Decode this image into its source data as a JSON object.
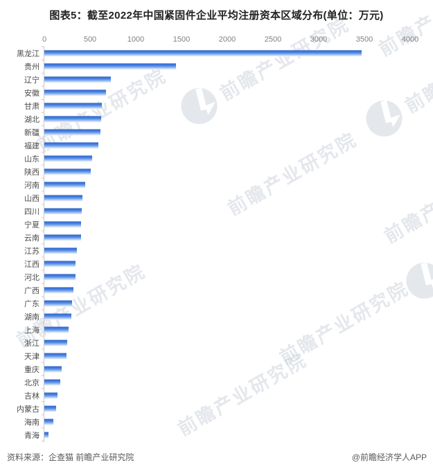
{
  "chart_data": {
    "type": "bar",
    "orientation": "horizontal",
    "title": "图表5：截至2022年中国紧固件企业平均注册资本区域分布(单位：万元)",
    "unit": "万元",
    "categories": [
      "黑龙江",
      "贵州",
      "辽宁",
      "安徽",
      "甘肃",
      "湖北",
      "新疆",
      "福建",
      "山东",
      "陕西",
      "河南",
      "山西",
      "四川",
      "宁夏",
      "云南",
      "江苏",
      "江西",
      "河北",
      "广西",
      "广东",
      "湖南",
      "上海",
      "浙江",
      "天津",
      "重庆",
      "北京",
      "吉林",
      "内蒙古",
      "海南",
      "青海"
    ],
    "values": [
      3468,
      1440,
      724,
      671,
      628,
      622,
      616,
      590,
      520,
      508,
      450,
      419,
      411,
      404,
      398,
      356,
      341,
      338,
      316,
      304,
      292,
      265,
      250,
      240,
      192,
      176,
      146,
      131,
      101,
      45
    ],
    "xlim": [
      0,
      4000
    ],
    "x_ticks": [
      0,
      500,
      1000,
      1500,
      2000,
      2500,
      3000,
      3500,
      4000
    ],
    "grid": false,
    "legend": null,
    "bar_color_top": "#2c5ec2",
    "bar_color_mid": "#3a74da",
    "bar_color_bottom": "#f2f7fd"
  },
  "footer": {
    "source": "资料来源：企查猫 前瞻产业研究院",
    "credit": "@前瞻经济学人APP"
  },
  "watermark": {
    "text": "前瞻产业研究院"
  },
  "colors": {
    "title": "#222222",
    "tick_label": "#7f7f7f",
    "category_label": "#4a4a4a",
    "axis_line": "#c9c9c9",
    "footer_text": "#595959",
    "watermark": "#c9cfda",
    "background": "#ffffff"
  }
}
